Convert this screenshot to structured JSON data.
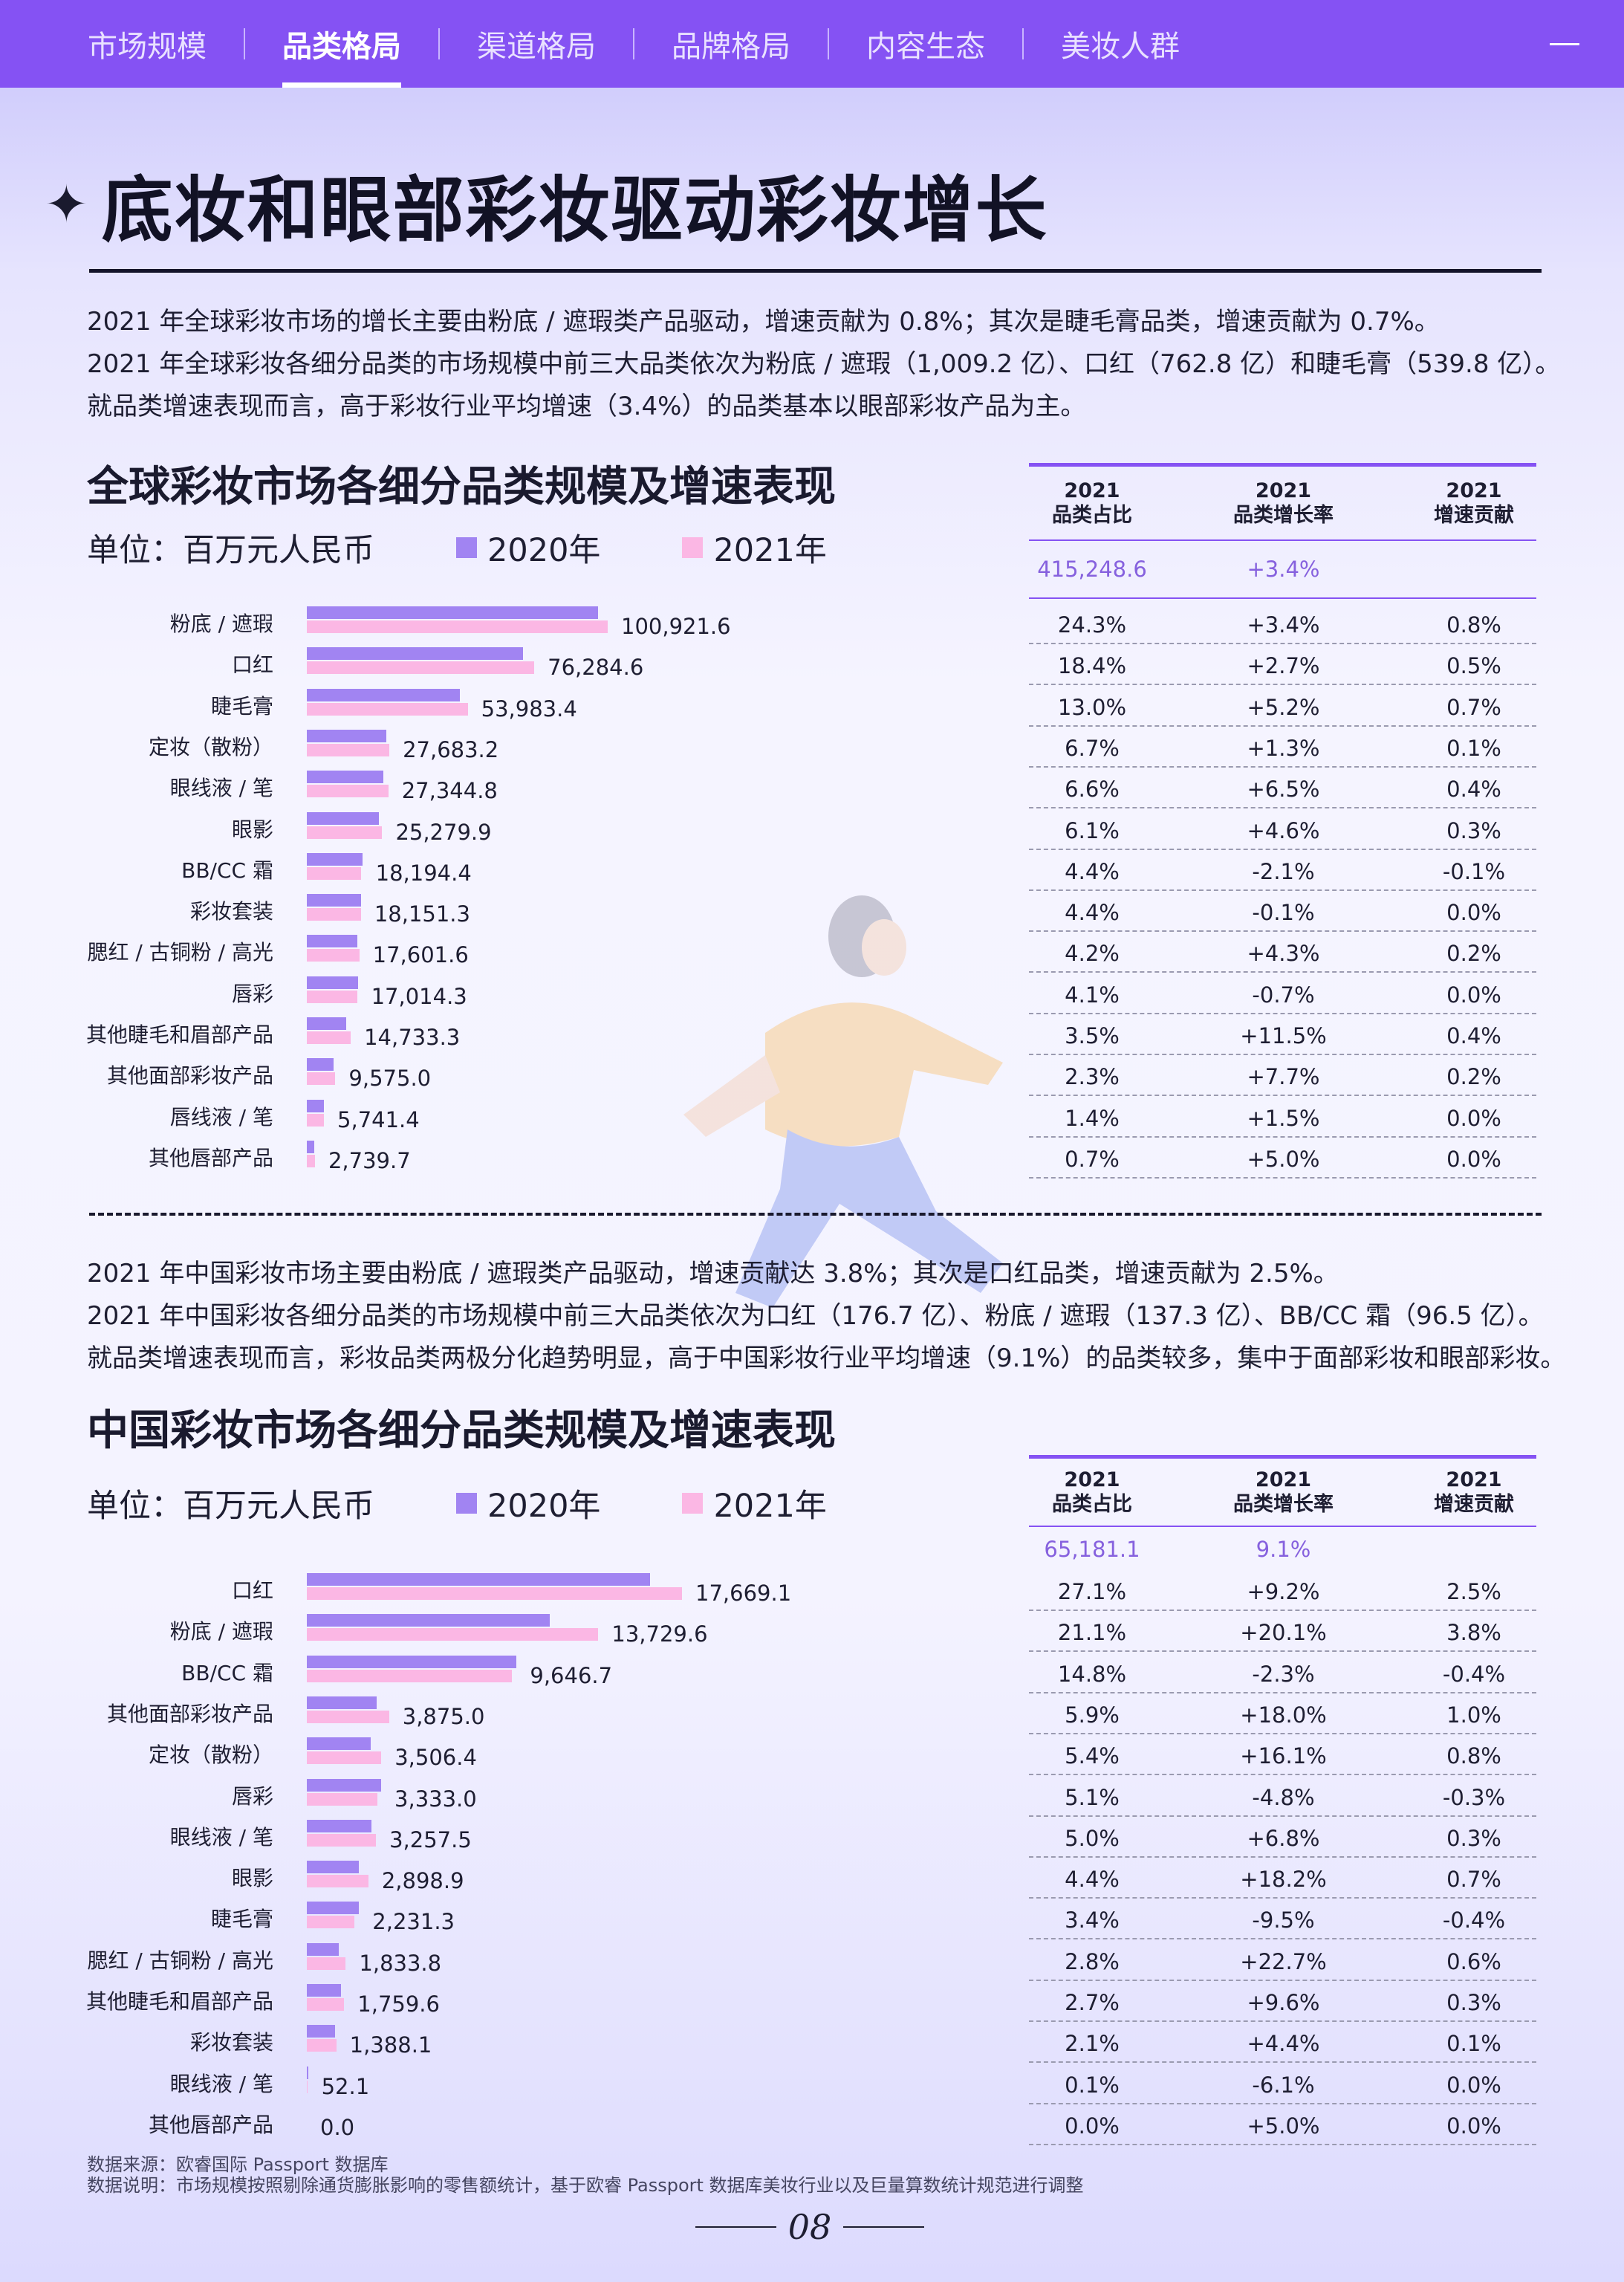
{
  "nav": {
    "tabs": [
      "市场规模",
      "品类格局",
      "渠道格局",
      "品牌格局",
      "内容生态",
      "美妆人群"
    ],
    "active": 1
  },
  "title": "底妆和眼部彩妆驱动彩妆增长",
  "global_para": [
    "2021 年全球彩妆市场的增长主要由粉底 / 遮瑕类产品驱动，增速贡献为 0.8%；其次是睫毛膏品类，增速贡献为 0.7%。",
    "2021 年全球彩妆各细分品类的市场规模中前三大品类依次为粉底 / 遮瑕（1,009.2 亿）、口红（762.8 亿）和睫毛膏（539.8 亿）。",
    "就品类增速表现而言，高于彩妆行业平均增速（3.4%）的品类基本以眼部彩妆产品为主。"
  ],
  "china_para": [
    "2021 年中国彩妆市场主要由粉底 / 遮瑕类产品驱动，增速贡献达 3.8%；其次是口红品类，增速贡献为 2.5%。",
    "2021 年中国彩妆各细分品类的市场规模中前三大品类依次为口红（176.7 亿）、粉底 / 遮瑕（137.3 亿）、BB/CC 霜（96.5 亿）。",
    "就品类增速表现而言，彩妆品类两极分化趋势明显，高于中国彩妆行业平均增速（9.1%）的品类较多，集中于面部彩妆和眼部彩妆。"
  ],
  "legend": {
    "unit": "单位：百万元人民币",
    "s2020": "2020年",
    "s2021": "2021年",
    "c2020": "#a184f2",
    "c2021": "#fbb7e4"
  },
  "table_head": {
    "c1": [
      "2021",
      "品类占比"
    ],
    "c2": [
      "2021",
      "品类增长率"
    ],
    "c3": [
      "2021",
      "增速贡献"
    ]
  },
  "chart_data": [
    {
      "type": "bar",
      "title": "全球彩妆市场各细分品类规模及增速表现",
      "total": "415,248.6",
      "total_growth": "+3.4%",
      "xlim": [
        0,
        100921.6
      ],
      "categories": [
        "粉底 / 遮瑕",
        "口红",
        "睫毛膏",
        "定妆（散粉）",
        "眼线液 / 笔",
        "眼影",
        "BB/CC 霜",
        "彩妆套装",
        "腮红 / 古铜粉 / 高光",
        "唇彩",
        "其他睫毛和眉部产品",
        "其他面部彩妆产品",
        "唇线液 / 笔",
        "其他唇部产品"
      ],
      "series": [
        {
          "name": "2020年",
          "values": [
            97600,
            72400,
            51400,
            26700,
            25600,
            24200,
            18600,
            18100,
            16900,
            17100,
            13200,
            8900,
            5650,
            2600
          ]
        },
        {
          "name": "2021年",
          "values": [
            100921.6,
            76284.6,
            53983.4,
            27683.2,
            27344.8,
            25279.9,
            18194.4,
            18151.3,
            17601.6,
            17014.3,
            14733.3,
            9575.0,
            5741.4,
            2739.7
          ]
        }
      ],
      "labels": [
        "100,921.6",
        "76,284.6",
        "53,983.4",
        "27,683.2",
        "27,344.8",
        "25,279.9",
        "18,194.4",
        "18,151.3",
        "17,601.6",
        "17,014.3",
        "14,733.3",
        "9,575.0",
        "5,741.4",
        "2,739.7"
      ],
      "share": [
        "24.3%",
        "18.4%",
        "13.0%",
        "6.7%",
        "6.6%",
        "6.1%",
        "4.4%",
        "4.4%",
        "4.2%",
        "4.1%",
        "3.5%",
        "2.3%",
        "1.4%",
        "0.7%"
      ],
      "growth": [
        "+3.4%",
        "+2.7%",
        "+5.2%",
        "+1.3%",
        "+6.5%",
        "+4.6%",
        "-2.1%",
        "-0.1%",
        "+4.3%",
        "-0.7%",
        "+11.5%",
        "+7.7%",
        "+1.5%",
        "+5.0%"
      ],
      "contrib": [
        "0.8%",
        "0.5%",
        "0.7%",
        "0.1%",
        "0.4%",
        "0.3%",
        "-0.1%",
        "0.0%",
        "0.2%",
        "0.0%",
        "0.4%",
        "0.2%",
        "0.0%",
        "0.0%"
      ]
    },
    {
      "type": "bar",
      "title": "中国彩妆市场各细分品类规模及增速表现",
      "total": "65,181.1",
      "total_growth": "9.1%",
      "xlim": [
        0,
        17669.1
      ],
      "categories": [
        "口红",
        "粉底 / 遮瑕",
        "BB/CC 霜",
        "其他面部彩妆产品",
        "定妆（散粉）",
        "唇彩",
        "眼线液 / 笔",
        "眼影",
        "睫毛膏",
        "腮红 / 古铜粉 / 高光",
        "其他睫毛和眉部产品",
        "彩妆套装",
        "眼线液 / 笔",
        "其他唇部产品"
      ],
      "series": [
        {
          "name": "2020年",
          "values": [
            16180,
            11430,
            9880,
            3280,
            3020,
            3500,
            3050,
            2450,
            2460,
            1500,
            1610,
            1330,
            56,
            0
          ]
        },
        {
          "name": "2021年",
          "values": [
            17669.1,
            13729.6,
            9646.7,
            3875.0,
            3506.4,
            3333.0,
            3257.5,
            2898.9,
            2231.3,
            1833.8,
            1759.6,
            1388.1,
            52.1,
            0.0
          ]
        }
      ],
      "labels": [
        "17,669.1",
        "13,729.6",
        "9,646.7",
        "3,875.0",
        "3,506.4",
        "3,333.0",
        "3,257.5",
        "2,898.9",
        "2,231.3",
        "1,833.8",
        "1,759.6",
        "1,388.1",
        "52.1",
        "0.0"
      ],
      "share": [
        "27.1%",
        "21.1%",
        "14.8%",
        "5.9%",
        "5.4%",
        "5.1%",
        "5.0%",
        "4.4%",
        "3.4%",
        "2.8%",
        "2.7%",
        "2.1%",
        "0.1%",
        "0.0%"
      ],
      "growth": [
        "+9.2%",
        "+20.1%",
        "-2.3%",
        "+18.0%",
        "+16.1%",
        "-4.8%",
        "+6.8%",
        "+18.2%",
        "-9.5%",
        "+22.7%",
        "+9.6%",
        "+4.4%",
        "-6.1%",
        "+5.0%"
      ],
      "contrib": [
        "2.5%",
        "3.8%",
        "-0.4%",
        "1.0%",
        "0.8%",
        "-0.3%",
        "0.3%",
        "0.7%",
        "-0.4%",
        "0.6%",
        "0.3%",
        "0.1%",
        "0.0%",
        "0.0%"
      ]
    }
  ],
  "footer": {
    "source": "数据来源：欧睿国际 Passport 数据库",
    "note": "数据说明：市场规模按照剔除通货膨胀影响的零售额统计，基于欧睿 Passport 数据库美妆行业以及巨量算数统计规范进行调整",
    "page": "08"
  }
}
